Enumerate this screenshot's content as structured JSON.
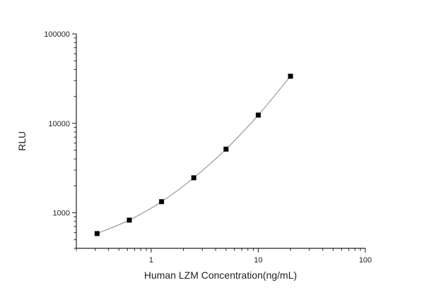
{
  "chart_data": {
    "type": "scatter",
    "title": "",
    "xlabel": "Human LZM Concentration(ng/mL)",
    "ylabel": "RLU",
    "x_scale": "log",
    "y_scale": "log",
    "xlim": [
      0.2,
      100
    ],
    "ylim": [
      400,
      100000
    ],
    "x_ticks": [
      1,
      10,
      100
    ],
    "x_tick_labels": [
      "1",
      "10",
      "100"
    ],
    "y_ticks": [
      1000,
      10000,
      100000
    ],
    "y_tick_labels": [
      "1000",
      "10000",
      "100000"
    ],
    "grid": false,
    "legend": "none",
    "series": [
      {
        "x": [
          0.3125,
          0.625,
          1.25,
          2.5,
          5,
          10,
          20
        ],
        "y": [
          585,
          827,
          1330,
          2460,
          5140,
          12360,
          33600
        ],
        "marker": "square",
        "marker_color": "#000000",
        "line_color": "#888888",
        "line": "smooth fitted curve"
      }
    ]
  }
}
